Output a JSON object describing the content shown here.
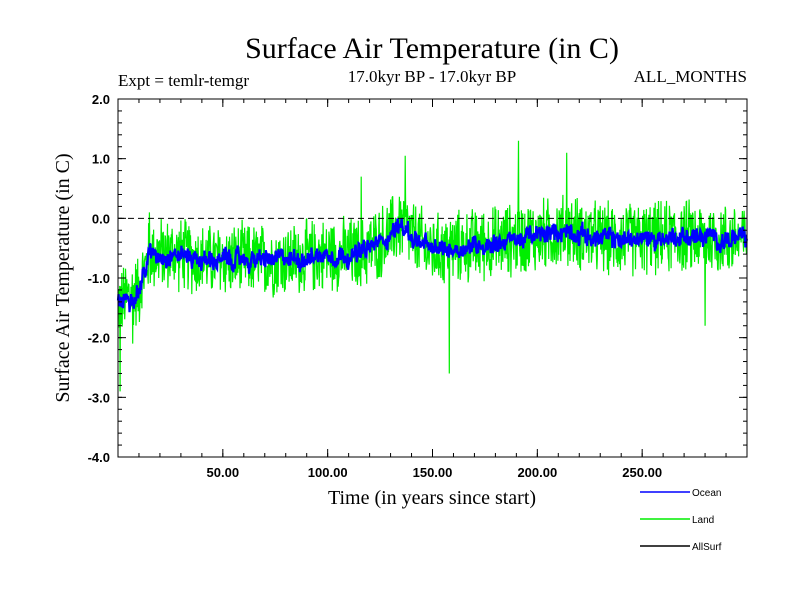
{
  "chart_data": {
    "type": "line",
    "title": "Surface Air Temperature (in C)",
    "subtitle": "17.0kyr BP - 17.0kyr BP",
    "expt_label": "Expt = temlr-temgr",
    "months_label": "ALL_MONTHS",
    "xlabel": "Time (in years since start)",
    "ylabel": "Surface Air Temperature (in C)",
    "xlim": [
      0,
      300
    ],
    "ylim": [
      -4.0,
      2.0
    ],
    "x_ticks": [
      {
        "value": 50,
        "label": "50.00"
      },
      {
        "value": 100,
        "label": "100.00"
      },
      {
        "value": 150,
        "label": "150.00"
      },
      {
        "value": 200,
        "label": "200.00"
      },
      {
        "value": 250,
        "label": "250.00"
      }
    ],
    "y_ticks": [
      {
        "value": 2.0,
        "label": "2.0"
      },
      {
        "value": 1.0,
        "label": "1.0"
      },
      {
        "value": 0.0,
        "label": "0.0"
      },
      {
        "value": -1.0,
        "label": "-1.0"
      },
      {
        "value": -2.0,
        "label": "-2.0"
      },
      {
        "value": -3.0,
        "label": "-3.0"
      },
      {
        "value": -4.0,
        "label": "-4.0"
      }
    ],
    "reference_line": {
      "value": 0.0,
      "style": "dashed"
    },
    "legend_position": "bottom-right",
    "series": [
      {
        "name": "Land",
        "color": "#00ee00",
        "kind": "noisy-monthly",
        "trend_x": [
          0,
          2,
          5,
          10,
          15,
          20,
          30,
          40,
          60,
          80,
          100,
          115,
          125,
          135,
          140,
          150,
          160,
          180,
          200,
          215,
          230,
          250,
          270,
          290,
          300
        ],
        "trend_y": [
          -1.4,
          -1.4,
          -1.3,
          -1.2,
          -0.6,
          -0.6,
          -0.6,
          -0.7,
          -0.7,
          -0.7,
          -0.6,
          -0.6,
          -0.4,
          -0.1,
          -0.3,
          -0.55,
          -0.5,
          -0.4,
          -0.3,
          -0.2,
          -0.35,
          -0.35,
          -0.3,
          -0.35,
          -0.35
        ],
        "noise_amplitude": 0.7,
        "spikes": [
          {
            "x": 1,
            "y": -2.9
          },
          {
            "x": 7,
            "y": -2.1
          },
          {
            "x": 15,
            "y": 0.1
          },
          {
            "x": 116,
            "y": 0.7
          },
          {
            "x": 137,
            "y": 1.05
          },
          {
            "x": 158,
            "y": -2.6
          },
          {
            "x": 191,
            "y": 1.3
          },
          {
            "x": 214,
            "y": 1.1
          },
          {
            "x": 280,
            "y": -1.8
          }
        ]
      },
      {
        "name": "Ocean",
        "color": "#0000ff",
        "kind": "band",
        "trend_x": [
          0,
          2,
          5,
          10,
          15,
          20,
          30,
          40,
          60,
          80,
          100,
          115,
          125,
          135,
          140,
          150,
          160,
          180,
          200,
          215,
          230,
          250,
          270,
          290,
          300
        ],
        "trend_y": [
          -1.4,
          -1.4,
          -1.3,
          -1.2,
          -0.6,
          -0.6,
          -0.6,
          -0.7,
          -0.7,
          -0.7,
          -0.6,
          -0.6,
          -0.4,
          -0.1,
          -0.3,
          -0.55,
          -0.5,
          -0.4,
          -0.3,
          -0.2,
          -0.35,
          -0.35,
          -0.3,
          -0.35,
          -0.35
        ],
        "noise_amplitude": 0.25
      },
      {
        "name": "AllSurf",
        "color": "#000000",
        "kind": "legend-only"
      }
    ]
  }
}
